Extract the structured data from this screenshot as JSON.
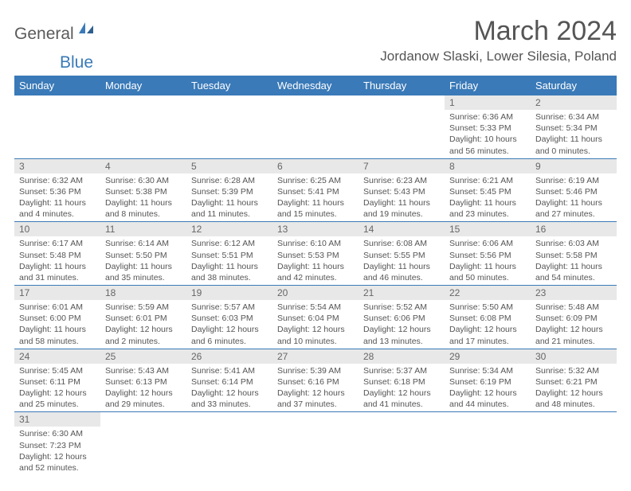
{
  "logo": {
    "general": "General",
    "blue": "Blue"
  },
  "title": "March 2024",
  "location": "Jordanow Slaski, Lower Silesia, Poland",
  "dayHeaders": [
    "Sunday",
    "Monday",
    "Tuesday",
    "Wednesday",
    "Thursday",
    "Friday",
    "Saturday"
  ],
  "colors": {
    "headerBg": "#3a7ab8",
    "headerText": "#ffffff",
    "dayNumBg": "#e8e8e8",
    "text": "#555555"
  },
  "weeks": [
    [
      null,
      null,
      null,
      null,
      null,
      {
        "n": "1",
        "sr": "Sunrise: 6:36 AM",
        "ss": "Sunset: 5:33 PM",
        "dl": "Daylight: 10 hours and 56 minutes."
      },
      {
        "n": "2",
        "sr": "Sunrise: 6:34 AM",
        "ss": "Sunset: 5:34 PM",
        "dl": "Daylight: 11 hours and 0 minutes."
      }
    ],
    [
      {
        "n": "3",
        "sr": "Sunrise: 6:32 AM",
        "ss": "Sunset: 5:36 PM",
        "dl": "Daylight: 11 hours and 4 minutes."
      },
      {
        "n": "4",
        "sr": "Sunrise: 6:30 AM",
        "ss": "Sunset: 5:38 PM",
        "dl": "Daylight: 11 hours and 8 minutes."
      },
      {
        "n": "5",
        "sr": "Sunrise: 6:28 AM",
        "ss": "Sunset: 5:39 PM",
        "dl": "Daylight: 11 hours and 11 minutes."
      },
      {
        "n": "6",
        "sr": "Sunrise: 6:25 AM",
        "ss": "Sunset: 5:41 PM",
        "dl": "Daylight: 11 hours and 15 minutes."
      },
      {
        "n": "7",
        "sr": "Sunrise: 6:23 AM",
        "ss": "Sunset: 5:43 PM",
        "dl": "Daylight: 11 hours and 19 minutes."
      },
      {
        "n": "8",
        "sr": "Sunrise: 6:21 AM",
        "ss": "Sunset: 5:45 PM",
        "dl": "Daylight: 11 hours and 23 minutes."
      },
      {
        "n": "9",
        "sr": "Sunrise: 6:19 AM",
        "ss": "Sunset: 5:46 PM",
        "dl": "Daylight: 11 hours and 27 minutes."
      }
    ],
    [
      {
        "n": "10",
        "sr": "Sunrise: 6:17 AM",
        "ss": "Sunset: 5:48 PM",
        "dl": "Daylight: 11 hours and 31 minutes."
      },
      {
        "n": "11",
        "sr": "Sunrise: 6:14 AM",
        "ss": "Sunset: 5:50 PM",
        "dl": "Daylight: 11 hours and 35 minutes."
      },
      {
        "n": "12",
        "sr": "Sunrise: 6:12 AM",
        "ss": "Sunset: 5:51 PM",
        "dl": "Daylight: 11 hours and 38 minutes."
      },
      {
        "n": "13",
        "sr": "Sunrise: 6:10 AM",
        "ss": "Sunset: 5:53 PM",
        "dl": "Daylight: 11 hours and 42 minutes."
      },
      {
        "n": "14",
        "sr": "Sunrise: 6:08 AM",
        "ss": "Sunset: 5:55 PM",
        "dl": "Daylight: 11 hours and 46 minutes."
      },
      {
        "n": "15",
        "sr": "Sunrise: 6:06 AM",
        "ss": "Sunset: 5:56 PM",
        "dl": "Daylight: 11 hours and 50 minutes."
      },
      {
        "n": "16",
        "sr": "Sunrise: 6:03 AM",
        "ss": "Sunset: 5:58 PM",
        "dl": "Daylight: 11 hours and 54 minutes."
      }
    ],
    [
      {
        "n": "17",
        "sr": "Sunrise: 6:01 AM",
        "ss": "Sunset: 6:00 PM",
        "dl": "Daylight: 11 hours and 58 minutes."
      },
      {
        "n": "18",
        "sr": "Sunrise: 5:59 AM",
        "ss": "Sunset: 6:01 PM",
        "dl": "Daylight: 12 hours and 2 minutes."
      },
      {
        "n": "19",
        "sr": "Sunrise: 5:57 AM",
        "ss": "Sunset: 6:03 PM",
        "dl": "Daylight: 12 hours and 6 minutes."
      },
      {
        "n": "20",
        "sr": "Sunrise: 5:54 AM",
        "ss": "Sunset: 6:04 PM",
        "dl": "Daylight: 12 hours and 10 minutes."
      },
      {
        "n": "21",
        "sr": "Sunrise: 5:52 AM",
        "ss": "Sunset: 6:06 PM",
        "dl": "Daylight: 12 hours and 13 minutes."
      },
      {
        "n": "22",
        "sr": "Sunrise: 5:50 AM",
        "ss": "Sunset: 6:08 PM",
        "dl": "Daylight: 12 hours and 17 minutes."
      },
      {
        "n": "23",
        "sr": "Sunrise: 5:48 AM",
        "ss": "Sunset: 6:09 PM",
        "dl": "Daylight: 12 hours and 21 minutes."
      }
    ],
    [
      {
        "n": "24",
        "sr": "Sunrise: 5:45 AM",
        "ss": "Sunset: 6:11 PM",
        "dl": "Daylight: 12 hours and 25 minutes."
      },
      {
        "n": "25",
        "sr": "Sunrise: 5:43 AM",
        "ss": "Sunset: 6:13 PM",
        "dl": "Daylight: 12 hours and 29 minutes."
      },
      {
        "n": "26",
        "sr": "Sunrise: 5:41 AM",
        "ss": "Sunset: 6:14 PM",
        "dl": "Daylight: 12 hours and 33 minutes."
      },
      {
        "n": "27",
        "sr": "Sunrise: 5:39 AM",
        "ss": "Sunset: 6:16 PM",
        "dl": "Daylight: 12 hours and 37 minutes."
      },
      {
        "n": "28",
        "sr": "Sunrise: 5:37 AM",
        "ss": "Sunset: 6:18 PM",
        "dl": "Daylight: 12 hours and 41 minutes."
      },
      {
        "n": "29",
        "sr": "Sunrise: 5:34 AM",
        "ss": "Sunset: 6:19 PM",
        "dl": "Daylight: 12 hours and 44 minutes."
      },
      {
        "n": "30",
        "sr": "Sunrise: 5:32 AM",
        "ss": "Sunset: 6:21 PM",
        "dl": "Daylight: 12 hours and 48 minutes."
      }
    ],
    [
      {
        "n": "31",
        "sr": "Sunrise: 6:30 AM",
        "ss": "Sunset: 7:23 PM",
        "dl": "Daylight: 12 hours and 52 minutes."
      },
      null,
      null,
      null,
      null,
      null,
      null
    ]
  ]
}
